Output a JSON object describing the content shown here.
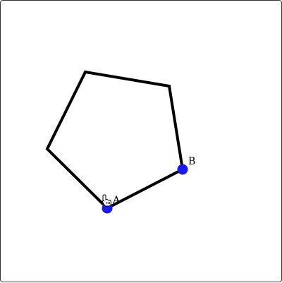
{
  "colors": {
    "stroke": "#000000",
    "point_fill": "#1a1aee",
    "frame": "#333333",
    "background": "#ffffff"
  },
  "diagram": {
    "shape": "pentagon",
    "points": {
      "A": {
        "label": "A"
      },
      "B": {
        "label": "B"
      }
    }
  },
  "cursor": {
    "icon": "hand-pointer-icon"
  }
}
